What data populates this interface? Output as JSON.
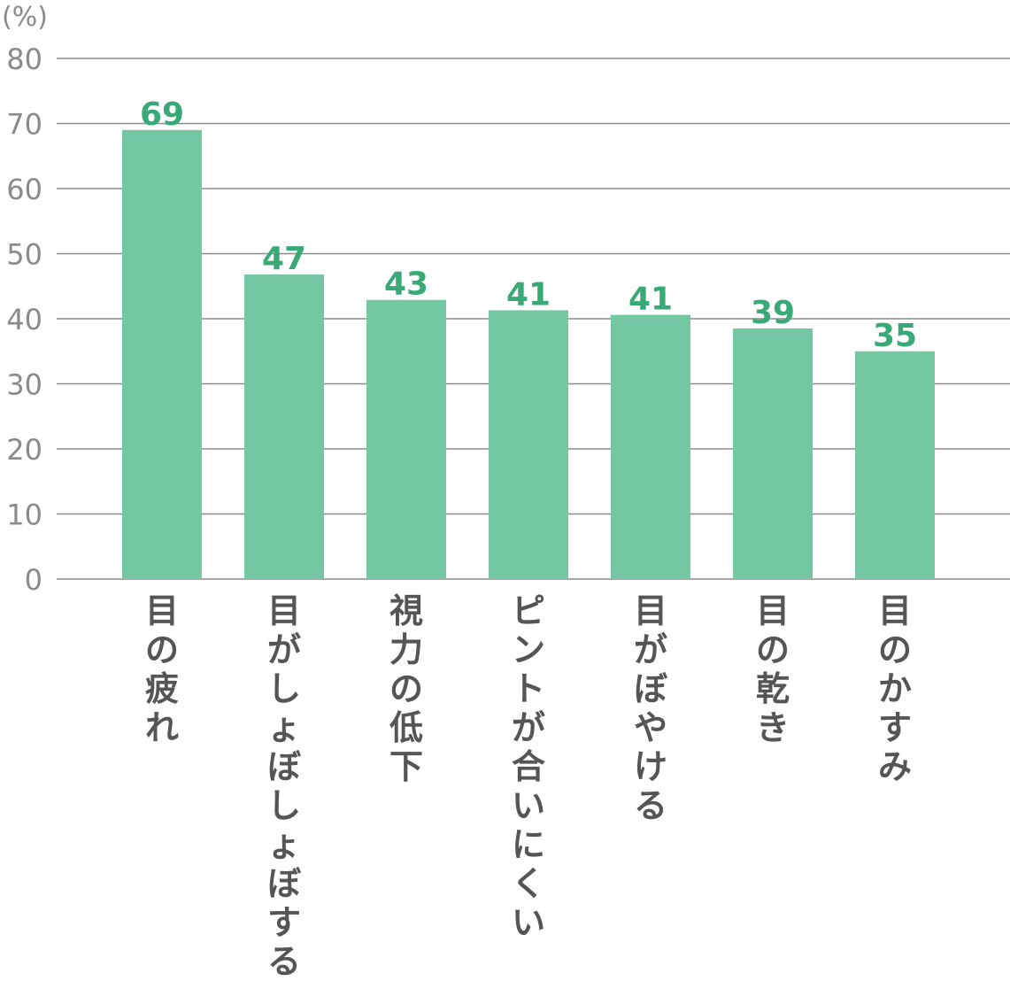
{
  "chart_data": {
    "type": "bar",
    "ylabel": "(%)",
    "ylim": [
      0,
      80
    ],
    "yticks": [
      0,
      10,
      20,
      30,
      40,
      50,
      60,
      70,
      80
    ],
    "grid": true,
    "categories": [
      "目の疲れ",
      "目がしょぼしょぼする",
      "視力の低下",
      "ピントが合いにくい",
      "目がぼやける",
      "目の乾き",
      "目のかすみ"
    ],
    "values": [
      69,
      46.8,
      42.9,
      41.3,
      40.6,
      38.5,
      35
    ],
    "data_labels": [
      "69",
      "47",
      "43",
      "41",
      "41",
      "39",
      "35"
    ],
    "colors": {
      "bar": "#74c7a3",
      "label": "#3aa978",
      "grid": "#8c8c8c",
      "axis_text": "#8a8a8a",
      "category_text": "#555555"
    }
  }
}
